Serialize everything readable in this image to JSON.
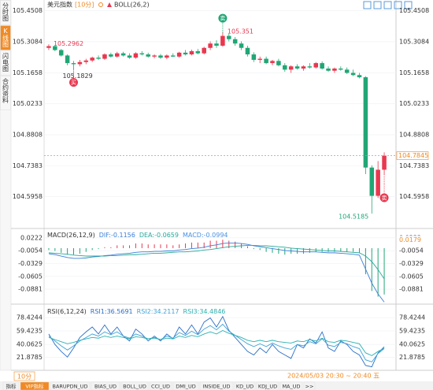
{
  "sidebar": {
    "tabs": [
      "分时图",
      "K线图",
      "闪电图",
      "合约资料"
    ],
    "active": 1
  },
  "header": {
    "symbol": "美元指数",
    "period": "[10分]",
    "indicator": "BOLL(26,2)"
  },
  "chart_data": [
    {
      "type": "candlestick",
      "up_color": "#e8384f",
      "down_color": "#21a675",
      "open": [
        105.28,
        105.288,
        105.27,
        105.245,
        105.21,
        105.205,
        105.215,
        105.222,
        105.235,
        105.23,
        105.25,
        105.24,
        105.255,
        105.245,
        105.235,
        105.255,
        105.25,
        105.24,
        105.245,
        105.235,
        105.245,
        105.24,
        105.258,
        105.25,
        105.265,
        105.255,
        105.28,
        105.3,
        105.29,
        105.335,
        105.32,
        105.3,
        105.28,
        105.25,
        105.225,
        105.23,
        105.21,
        105.22,
        105.2,
        105.18,
        105.195,
        105.185,
        105.195,
        105.19,
        105.21,
        105.185,
        105.175,
        105.185,
        105.18,
        105.165,
        105.155,
        105.145,
        104.73,
        104.6,
        104.72
      ],
      "high": [
        105.2962,
        105.292,
        105.275,
        105.25,
        105.22,
        105.225,
        105.23,
        105.24,
        105.245,
        105.255,
        105.258,
        105.262,
        105.262,
        105.255,
        105.26,
        105.265,
        105.258,
        105.25,
        105.252,
        105.25,
        105.255,
        105.262,
        105.27,
        105.272,
        105.275,
        105.285,
        105.31,
        105.315,
        105.351,
        105.345,
        105.33,
        105.31,
        105.29,
        105.26,
        105.24,
        105.24,
        105.225,
        105.23,
        105.21,
        105.2,
        105.205,
        105.2,
        105.21,
        105.215,
        105.218,
        105.195,
        105.19,
        105.195,
        105.19,
        105.18,
        105.165,
        105.15,
        104.74,
        104.76,
        104.8
      ],
      "low": [
        105.27,
        105.265,
        105.24,
        105.2,
        105.1829,
        105.195,
        105.205,
        105.215,
        105.225,
        105.225,
        105.235,
        105.235,
        105.24,
        105.23,
        105.23,
        105.245,
        105.235,
        105.232,
        105.23,
        105.228,
        105.238,
        105.235,
        105.245,
        105.245,
        105.25,
        105.25,
        105.27,
        105.28,
        105.285,
        105.31,
        105.29,
        105.27,
        105.24,
        105.215,
        105.21,
        105.205,
        105.2,
        105.195,
        105.17,
        105.165,
        105.18,
        105.175,
        105.185,
        105.185,
        105.18,
        105.17,
        105.165,
        105.175,
        105.16,
        105.15,
        105.14,
        104.7,
        104.5185,
        104.59,
        104.7
      ],
      "close": [
        105.288,
        105.27,
        105.245,
        105.21,
        105.205,
        105.215,
        105.222,
        105.235,
        105.23,
        105.25,
        105.24,
        105.255,
        105.245,
        105.235,
        105.255,
        105.25,
        105.24,
        105.245,
        105.235,
        105.245,
        105.24,
        105.258,
        105.25,
        105.265,
        105.255,
        105.28,
        105.3,
        105.29,
        105.335,
        105.32,
        105.3,
        105.28,
        105.25,
        105.225,
        105.23,
        105.21,
        105.22,
        105.2,
        105.18,
        105.195,
        105.185,
        105.195,
        105.19,
        105.21,
        105.185,
        105.175,
        105.185,
        105.18,
        105.165,
        105.155,
        105.145,
        104.73,
        104.6,
        104.72,
        104.785
      ],
      "ylim": [
        104.45,
        105.5
      ],
      "yticks": [
        105.4508,
        105.3084,
        105.1658,
        105.0233,
        104.8808,
        104.7383,
        104.5958
      ],
      "annotations": [
        105.2962,
        105.1829,
        105.351,
        104.5185
      ],
      "signals": [
        {
          "label": "买",
          "color": "#e8384f"
        },
        {
          "label": "卖",
          "color": "#21a675"
        },
        {
          "label": "卖",
          "color": "#e8384f"
        }
      ],
      "last_price": 104.7845,
      "last_price_color": "#f08a24"
    },
    {
      "type": "macd",
      "title": "MACD(26,12,9)",
      "legend_labels": [
        "DIF:-0.1156",
        "DEA:-0.0659",
        "MACD:-0.0994"
      ],
      "series": [
        {
          "name": "DIF",
          "color": "#3a7fd9",
          "values": [
            -0.012,
            -0.014,
            -0.017,
            -0.02,
            -0.022,
            -0.022,
            -0.021,
            -0.019,
            -0.018,
            -0.016,
            -0.015,
            -0.013,
            -0.012,
            -0.011,
            -0.009,
            -0.008,
            -0.008,
            -0.007,
            -0.007,
            -0.006,
            -0.006,
            -0.004,
            -0.003,
            -0.001,
            0.0,
            0.002,
            0.005,
            0.007,
            0.01,
            0.011,
            0.011,
            0.01,
            0.008,
            0.005,
            0.003,
            0.001,
            -0.001,
            -0.003,
            -0.005,
            -0.006,
            -0.007,
            -0.008,
            -0.008,
            -0.008,
            -0.009,
            -0.01,
            -0.01,
            -0.011,
            -0.012,
            -0.013,
            -0.015,
            -0.045,
            -0.075,
            -0.098,
            -0.1156
          ]
        },
        {
          "name": "DEA",
          "color": "#27a99a",
          "values": [
            -0.01,
            -0.011,
            -0.012,
            -0.013,
            -0.015,
            -0.016,
            -0.017,
            -0.017,
            -0.017,
            -0.017,
            -0.016,
            -0.016,
            -0.015,
            -0.014,
            -0.014,
            -0.013,
            -0.012,
            -0.011,
            -0.011,
            -0.01,
            -0.009,
            -0.008,
            -0.008,
            -0.007,
            -0.006,
            -0.004,
            -0.003,
            -0.001,
            0.001,
            0.003,
            0.004,
            0.005,
            0.006,
            0.006,
            0.005,
            0.005,
            0.004,
            0.003,
            0.002,
            0.0,
            -0.001,
            -0.002,
            -0.003,
            -0.004,
            -0.005,
            -0.006,
            -0.006,
            -0.007,
            -0.008,
            -0.009,
            -0.01,
            -0.017,
            -0.029,
            -0.046,
            -0.0659
          ]
        },
        {
          "name": "MACD",
          "color": "#4a90e2",
          "up_color": "#e8384f",
          "down_color": "#21a675",
          "values": [
            -0.004,
            -0.006,
            -0.01,
            -0.014,
            -0.014,
            -0.012,
            -0.008,
            -0.004,
            -0.002,
            0.002,
            0.002,
            0.006,
            0.006,
            0.006,
            0.01,
            0.01,
            0.008,
            0.008,
            0.008,
            0.008,
            0.006,
            0.008,
            0.01,
            0.012,
            0.012,
            0.012,
            0.016,
            0.016,
            0.018,
            0.016,
            0.014,
            0.01,
            0.004,
            -0.002,
            -0.004,
            -0.008,
            -0.01,
            -0.012,
            -0.014,
            -0.012,
            -0.012,
            -0.012,
            -0.01,
            -0.008,
            -0.008,
            -0.008,
            -0.008,
            -0.008,
            -0.008,
            -0.008,
            -0.01,
            -0.056,
            -0.092,
            -0.104,
            -0.0994
          ]
        }
      ],
      "ylim": [
        -0.12,
        0.032
      ],
      "yticks": [
        0.0222,
        -0.0054,
        -0.0329,
        -0.0605,
        -0.0881
      ],
      "marker_value": 0.0179,
      "marker_color": "#f08a24"
    },
    {
      "type": "rsi",
      "title": "RSI(6,12,24)",
      "legend_labels": [
        "RSI1:36.5691",
        "RSI2:34.2117",
        "RSI3:34.4846"
      ],
      "series": [
        {
          "name": "RSI1",
          "color": "#2a6fc9",
          "values": [
            55,
            40,
            30,
            22,
            35,
            50,
            58,
            65,
            55,
            68,
            55,
            65,
            52,
            45,
            62,
            55,
            45,
            52,
            45,
            55,
            48,
            65,
            55,
            68,
            55,
            72,
            78,
            65,
            80,
            60,
            50,
            40,
            30,
            25,
            35,
            28,
            40,
            30,
            25,
            20,
            40,
            35,
            48,
            42,
            58,
            35,
            30,
            45,
            40,
            30,
            25,
            10,
            8,
            28,
            36.5691
          ]
        },
        {
          "name": "RSI2",
          "color": "#3fa3d6",
          "values": [
            52,
            45,
            38,
            32,
            38,
            45,
            50,
            55,
            52,
            58,
            54,
            58,
            52,
            49,
            55,
            52,
            48,
            50,
            47,
            52,
            49,
            57,
            53,
            59,
            54,
            62,
            67,
            61,
            69,
            59,
            53,
            47,
            41,
            37,
            41,
            37,
            42,
            38,
            35,
            33,
            40,
            38,
            44,
            41,
            48,
            39,
            37,
            43,
            41,
            37,
            34,
            18,
            15,
            27,
            34.2117
          ]
        },
        {
          "name": "RSI3",
          "color": "#2bb0b0",
          "values": [
            50,
            47,
            44,
            41,
            43,
            46,
            48,
            50,
            49,
            52,
            50,
            52,
            50,
            48,
            51,
            50,
            48,
            49,
            47,
            49,
            48,
            52,
            50,
            53,
            51,
            55,
            58,
            55,
            60,
            56,
            53,
            50,
            46,
            44,
            46,
            44,
            46,
            44,
            43,
            42,
            45,
            44,
            47,
            45,
            49,
            44,
            43,
            46,
            45,
            43,
            41,
            28,
            24,
            30,
            34.4846
          ]
        }
      ],
      "ylim": [
        3,
        91
      ],
      "yticks": [
        78.4244,
        59.4235,
        40.0625,
        21.8785
      ]
    }
  ],
  "footer": {
    "period_tab": "10分",
    "time_range": "2024/05/03 20:30 ~ 20:40 五"
  },
  "toolbar": {
    "items": [
      "指标",
      "VIP指标",
      "BARUPDN_UD",
      "BIAS_UD",
      "BOLL_UD",
      "CCI_UD",
      "DMI_UD",
      "INSIDE_UD",
      "KD_UD",
      "KDJ_UD",
      "MA_UD",
      ">>"
    ],
    "active": 1
  }
}
